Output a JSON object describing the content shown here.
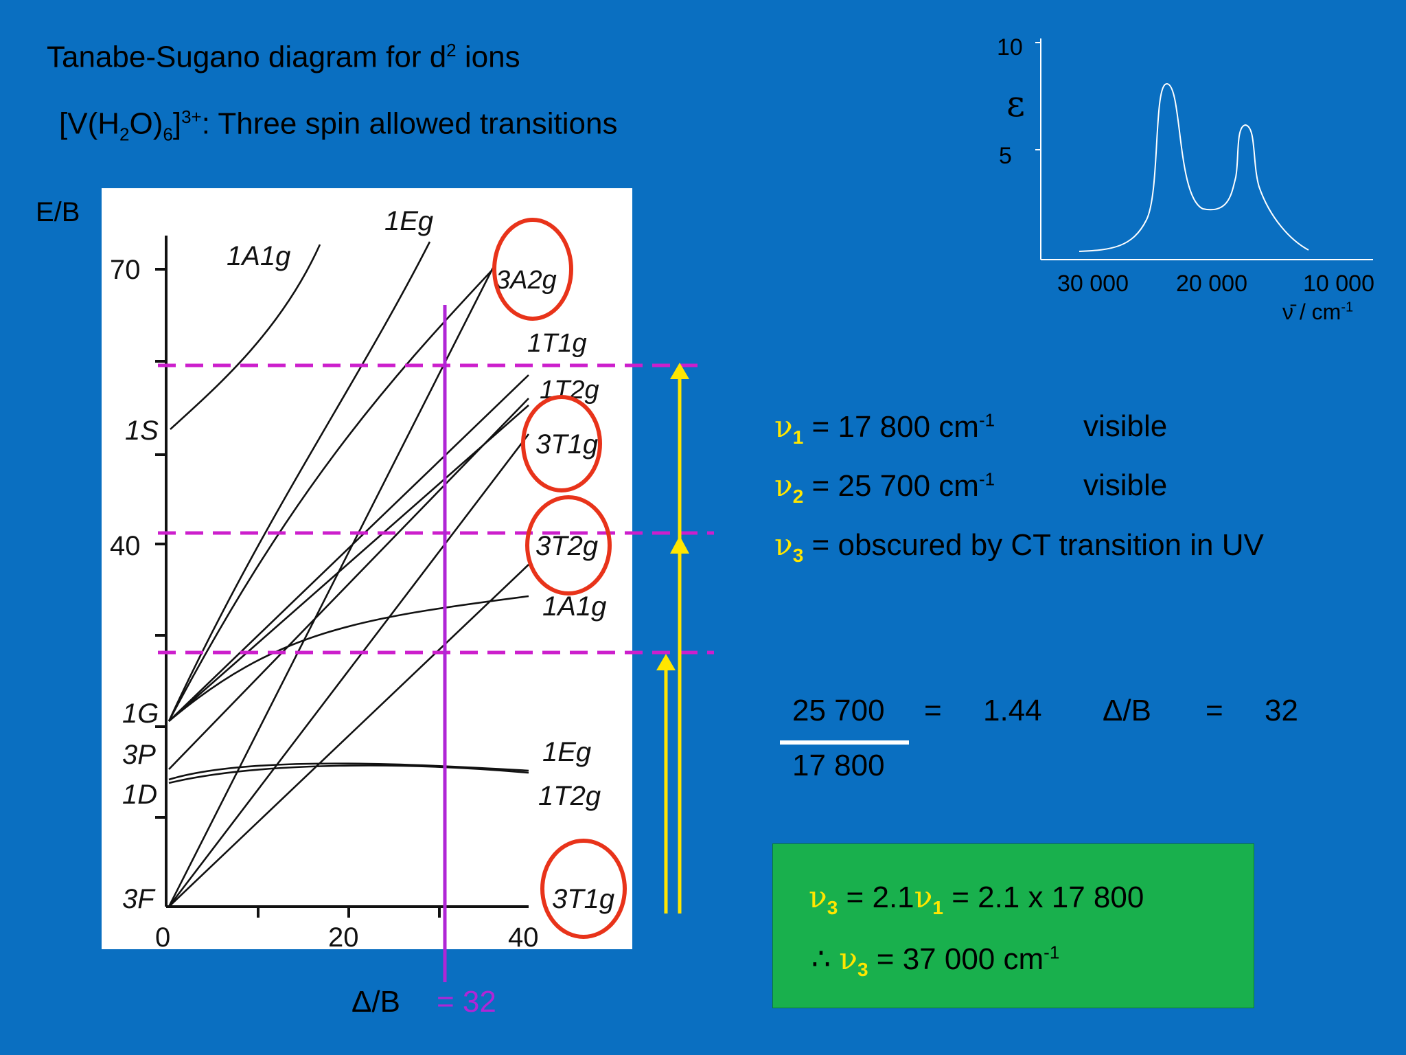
{
  "slide": {
    "title_text": "Tanabe-Sugano diagram for d",
    "title_sup": "2",
    "title_end": " ions",
    "complex_pre": "[V(H",
    "complex_sub1": "2",
    "complex_mid": "O)",
    "complex_sub2": "6",
    "complex_post": "]",
    "complex_charge": "3+",
    "complex_desc": ":  Three spin allowed transitions",
    "y_axis_label": "E/B"
  },
  "diagram": {
    "y_ticks": [
      "70",
      "40"
    ],
    "x_ticks": [
      "0",
      "20",
      "40"
    ],
    "x_axis_label": "Δ/B",
    "marker_value": "= 32",
    "state_labels": {
      "A1g_top": "1A1g",
      "Eg_top": "1Eg",
      "A2g": "3A2g",
      "T1g_a": "1T1g",
      "T2g_a": "1T2g",
      "T1g_b": "3T1g",
      "T2g_b": "3T2g",
      "A1g_mid": "1A1g",
      "Eg_low": "1Eg",
      "T2g_low": "1T2g",
      "T1g_ground": "3T1g"
    },
    "term_labels": [
      "1S",
      "1G",
      "3P",
      "1D",
      "3F"
    ],
    "colors": {
      "panel": "#ffffff",
      "dashed_lines": "#cc1fcc",
      "marker_line": "#b026d6",
      "arrows": "#ffe600",
      "circles": "#e8331a"
    }
  },
  "spectrum": {
    "y_ticks": [
      "10",
      "5"
    ],
    "y_label": "ε",
    "x_ticks": [
      "30 000",
      "20 000",
      "10 000"
    ],
    "x_label": "ν̄ / cm",
    "x_label_sup": "-1"
  },
  "transitions": [
    {
      "symbol": "ν",
      "sub": "1",
      "text": " = 17 800 cm",
      "sup": "-1",
      "region": "visible"
    },
    {
      "symbol": "ν",
      "sub": "2",
      "text": " = 25 700 cm",
      "sup": "-1",
      "region": "visible"
    },
    {
      "symbol": "ν",
      "sub": "3",
      "text": " = obscured by CT transition in UV",
      "sup": "",
      "region": ""
    }
  ],
  "calculation": {
    "numerator": "25 700",
    "denominator": "17 800",
    "equals1": "=",
    "ratio": "1.44",
    "db_label": "Δ/B",
    "equals2": "=",
    "db_value": "32"
  },
  "result_box": {
    "line1_sym": "ν",
    "line1_sub": "3",
    "line1_mid": " = 2.1",
    "line1_sym2": "ν",
    "line1_sub2": "1",
    "line1_end": "  = 2.1 x 17 800",
    "line2_therefore": "∴ ",
    "line2_sym": "ν",
    "line2_sub": "3",
    "line2_text": " = 37 000 cm",
    "line2_sup": "-1"
  }
}
